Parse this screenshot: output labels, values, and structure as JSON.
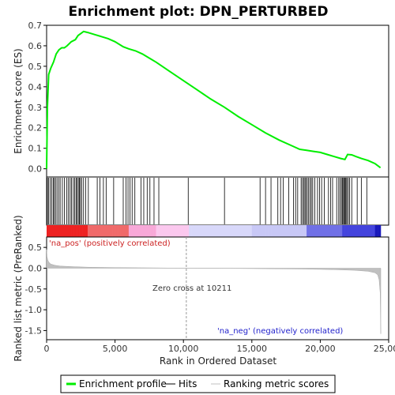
{
  "chart_data": {
    "type": "line",
    "title": "Enrichment plot: DPN_PERTURBED",
    "top_panel": {
      "ylabel": "Enrichment score (ES)",
      "ylim": [
        -0.04,
        0.7
      ],
      "yticks": [
        "0.0",
        "0.1",
        "0.2",
        "0.3",
        "0.4",
        "0.5",
        "0.6",
        "0.7"
      ],
      "ytick_values": [
        0.0,
        0.1,
        0.2,
        0.3,
        0.4,
        0.5,
        0.6,
        0.7
      ],
      "series": [
        {
          "name": "Enrichment profile",
          "color": "#00ee00",
          "x": [
            0,
            60,
            150,
            300,
            500,
            700,
            900,
            1100,
            1300,
            1500,
            1800,
            2100,
            2300,
            2500,
            2700,
            3000,
            3500,
            4000,
            4500,
            5000,
            5600,
            6000,
            6500,
            7000,
            7500,
            8000,
            9000,
            10211,
            11000,
            12000,
            13000,
            14000,
            15000,
            16000,
            17000,
            18000,
            18500,
            19000,
            19500,
            20000,
            20500,
            21000,
            21500,
            21800,
            22000,
            22300,
            22600,
            23000,
            23500,
            24000,
            24400
          ],
          "y": [
            0.0,
            0.3,
            0.46,
            0.49,
            0.52,
            0.56,
            0.58,
            0.59,
            0.59,
            0.6,
            0.62,
            0.63,
            0.65,
            0.66,
            0.67,
            0.665,
            0.655,
            0.645,
            0.635,
            0.62,
            0.595,
            0.585,
            0.575,
            0.56,
            0.54,
            0.52,
            0.475,
            0.42,
            0.385,
            0.34,
            0.3,
            0.255,
            0.215,
            0.175,
            0.14,
            0.11,
            0.095,
            0.09,
            0.085,
            0.08,
            0.07,
            0.06,
            0.05,
            0.045,
            0.07,
            0.068,
            0.06,
            0.05,
            0.04,
            0.025,
            0.005
          ]
        }
      ]
    },
    "hits": [
      60,
      150,
      260,
      380,
      480,
      560,
      650,
      760,
      880,
      990,
      1150,
      1300,
      1480,
      1600,
      1720,
      1820,
      1950,
      2050,
      2150,
      2230,
      2320,
      2400,
      2470,
      2560,
      2700,
      2850,
      3050,
      3700,
      3900,
      4150,
      4350,
      4900,
      5600,
      5800,
      5950,
      6100,
      6250,
      6450,
      6900,
      7100,
      7350,
      7550,
      7850,
      8200,
      10350,
      13000,
      15600,
      16000,
      16400,
      16900,
      17100,
      17300,
      17700,
      18050,
      18200,
      18350,
      18600,
      18700,
      18800,
      18880,
      18950,
      19050,
      19150,
      19250,
      19350,
      19450,
      19600,
      19800,
      19950,
      20100,
      20300,
      20600,
      20750,
      20900,
      21200,
      21350,
      21450,
      21550,
      21620,
      21700,
      21760,
      21820,
      21880,
      21950,
      22050,
      22150,
      22300,
      22700,
      23000,
      23400
    ],
    "heatmap_label_pos": "'na_pos' (positively correlated)",
    "heatmap_label_neg": "'na_neg' (negatively correlated)",
    "bottom_panel": {
      "ylabel": "Ranked list metric (PreRanked)",
      "xlabel": "Rank in Ordered Dataset",
      "ylim": [
        -1.72,
        0.75
      ],
      "yticks": [
        "0.5",
        "0.0",
        "-0.5",
        "-1.0",
        "-1.5"
      ],
      "ytick_values": [
        0.5,
        0.0,
        -0.5,
        -1.0,
        -1.5
      ],
      "metric_x": [
        0,
        30,
        80,
        150,
        300,
        600,
        1000,
        2000,
        3000,
        5000,
        8000,
        10211,
        13000,
        16000,
        19000,
        21000,
        22500,
        23500,
        24000,
        24200,
        24300,
        24380,
        24420
      ],
      "metric_y": [
        0.45,
        0.28,
        0.2,
        0.15,
        0.1,
        0.07,
        0.05,
        0.035,
        0.025,
        0.015,
        0.007,
        0.0,
        -0.005,
        -0.012,
        -0.022,
        -0.035,
        -0.05,
        -0.075,
        -0.11,
        -0.16,
        -0.28,
        -0.6,
        -1.58
      ],
      "annotation": "Zero cross at 10211",
      "zero_cross": 10211
    },
    "xlim": [
      0,
      25000
    ],
    "xticks": [
      "0",
      "5,000",
      "10,000",
      "15,000",
      "20,000",
      "25,000"
    ],
    "xtick_values": [
      0,
      5000,
      10000,
      15000,
      20000,
      25000
    ]
  },
  "legend": {
    "items": [
      {
        "label": "Enrichment profile",
        "color": "#00ee00"
      },
      {
        "label": "Hits",
        "color": "#000000"
      },
      {
        "label": "Ranking metric scores",
        "color": "#c0c0c0"
      }
    ]
  },
  "colors": {
    "profile": "#00ee00",
    "pos_text": "#cc2222",
    "neg_text": "#2222cc",
    "metric_fill": "#c0c0c0"
  }
}
